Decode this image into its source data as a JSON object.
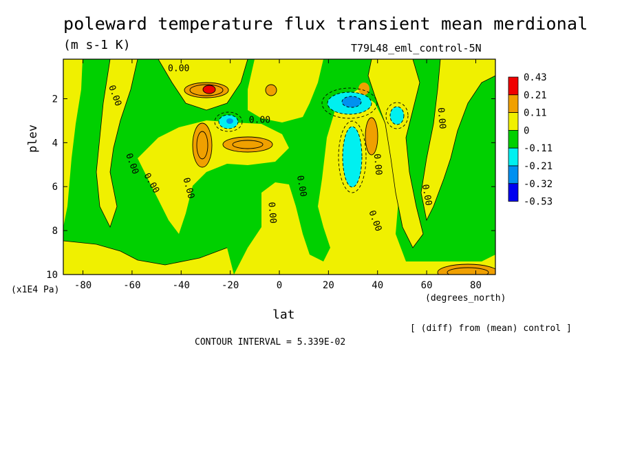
{
  "chart_data": {
    "type": "heatmap",
    "title": "poleward temperature flux transient mean merdional",
    "subtitle": "(m s-1 K)",
    "experiment": "T79L48_eml_control-5N",
    "xlabel": "lat",
    "x_units": "(degrees_north)",
    "ylabel": "plev",
    "y_units": "(x1E4 Pa)",
    "xlim": [
      -88,
      88
    ],
    "ylim": [
      10,
      0.2
    ],
    "x_ticks": [
      "-80",
      "-60",
      "-40",
      "-20",
      "0",
      "20",
      "40",
      "60",
      "80"
    ],
    "y_ticks": [
      "2",
      "4",
      "6",
      "8",
      "10"
    ],
    "contour_interval_text": "CONTOUR INTERVAL = 5.339E-02",
    "diff_note": "[ (diff) from (mean) control ]",
    "contour_labels": [
      "0.00",
      "0.00",
      "0.00",
      "0.00",
      "0.00",
      "0.00",
      "0.00",
      "0.00",
      "0.00",
      "0.00",
      "0.00",
      "0.00"
    ],
    "legend": {
      "labels": [
        "0.43",
        "0.21",
        "0.11",
        "0",
        "-0.11",
        "-0.21",
        "-0.32",
        "-0.53"
      ],
      "colors": [
        "#f00000",
        "#f0a000",
        "#f0f000",
        "#00d000",
        "#00f0f0",
        "#0090f0",
        "#0000f0"
      ]
    },
    "colors": {
      "positive_high": "#f00000",
      "positive_mid": "#f0a000",
      "positive_low": "#f0f000",
      "negative_low": "#00d000",
      "negative_mid": "#00f0f0",
      "negative_high": "#0090f0"
    },
    "features": [
      {
        "lat": -28,
        "plev": 1.5,
        "value": 0.43
      },
      {
        "lat": -33,
        "plev": 4.2,
        "value": 0.21
      },
      {
        "lat": -12,
        "plev": 4.1,
        "value": 0.21
      },
      {
        "lat": -23,
        "plev": 3.0,
        "value": -0.21
      },
      {
        "lat": 30,
        "plev": 2.0,
        "value": -0.32
      },
      {
        "lat": 28,
        "plev": 4.3,
        "value": -0.21
      },
      {
        "lat": 37,
        "plev": 3.7,
        "value": 0.21
      },
      {
        "lat": 48,
        "plev": 2.7,
        "value": -0.11
      },
      {
        "lat": -4,
        "plev": 1.4,
        "value": 0.21
      },
      {
        "lat": 75,
        "plev": 9.9,
        "value": 0.21
      }
    ]
  }
}
